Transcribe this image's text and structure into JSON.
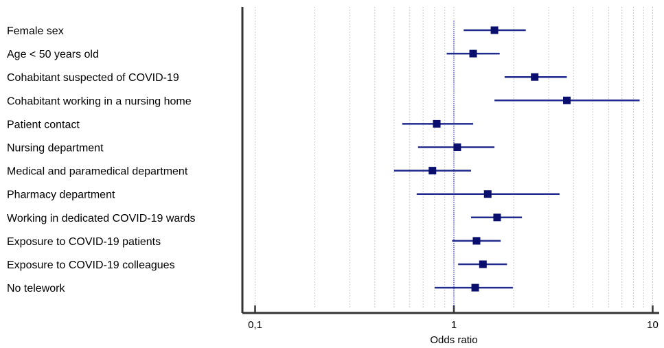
{
  "chart_data": {
    "type": "forest",
    "xlabel": "Odds  ratio",
    "xscale": "log",
    "xlim": [
      0.08,
      10.5
    ],
    "reference_line": 1,
    "tick_labels": [
      {
        "value": 0.1,
        "label": "0,1"
      },
      {
        "value": 1,
        "label": "1"
      },
      {
        "value": 10,
        "label": "10"
      }
    ],
    "grid": "vertical minor gridlines",
    "colors": {
      "marker": "#0a0f6e",
      "ci": "#1f2a8c",
      "reference": "#3232c8",
      "grid": "#c8c8c8",
      "axis": "#333333"
    },
    "rows": [
      {
        "label": "Female sex",
        "or": 1.6,
        "lower": 1.12,
        "upper": 2.3
      },
      {
        "label": "Age < 50 years old",
        "or": 1.25,
        "lower": 0.92,
        "upper": 1.7
      },
      {
        "label": "Cohabitant suspected of COVID-19",
        "or": 2.55,
        "lower": 1.8,
        "upper": 3.7
      },
      {
        "label": "Cohabitant working in a nursing home",
        "or": 3.7,
        "lower": 1.6,
        "upper": 8.6
      },
      {
        "label": "Patient contact",
        "or": 0.82,
        "lower": 0.55,
        "upper": 1.25
      },
      {
        "label": "Nursing department",
        "or": 1.04,
        "lower": 0.66,
        "upper": 1.6
      },
      {
        "label": "Medical and paramedical department",
        "or": 0.78,
        "lower": 0.5,
        "upper": 1.22
      },
      {
        "label": "Pharmacy department",
        "or": 1.48,
        "lower": 0.65,
        "upper": 3.4
      },
      {
        "label": "Working in dedicated COVID-19 wards",
        "or": 1.65,
        "lower": 1.22,
        "upper": 2.2
      },
      {
        "label": "Exposure to COVID-19 patients",
        "or": 1.3,
        "lower": 0.98,
        "upper": 1.72
      },
      {
        "label": "Exposure to COVID-19 colleagues",
        "or": 1.4,
        "lower": 1.05,
        "upper": 1.85
      },
      {
        "label": "No telework",
        "or": 1.28,
        "lower": 0.8,
        "upper": 1.98
      }
    ]
  }
}
